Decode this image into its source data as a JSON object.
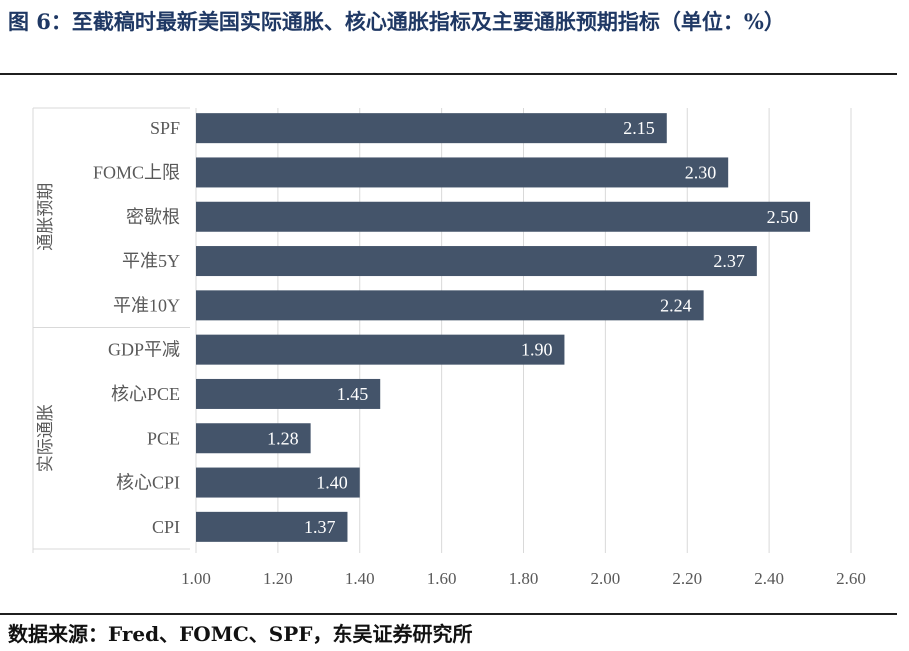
{
  "title": "图 6：至截稿时最新美国实际通胀、核心通胀指标及主要通胀预期指标（单位：%）",
  "source": "数据来源：Fred、FOMC、SPF，东吴证券研究所",
  "colors": {
    "bar": "#44546a",
    "grid": "#d9d9d9",
    "label": "#ffffff",
    "axis_text": "#595959"
  },
  "chart_data": {
    "type": "bar",
    "orientation": "horizontal",
    "categories": [
      "SPF",
      "FOMC上限",
      "密歇根",
      "平准5Y",
      "平准10Y",
      "GDP平减",
      "核心PCE",
      "PCE",
      "核心CPI",
      "CPI"
    ],
    "values": [
      2.15,
      2.3,
      2.5,
      2.37,
      2.24,
      1.9,
      1.45,
      1.28,
      1.4,
      1.37
    ],
    "value_labels": [
      "2.15",
      "2.30",
      "2.50",
      "2.37",
      "2.24",
      "1.90",
      "1.45",
      "1.28",
      "1.40",
      "1.37"
    ],
    "groups": [
      {
        "label": "通胀预期",
        "members": [
          "SPF",
          "FOMC上限",
          "密歇根",
          "平准5Y",
          "平准10Y"
        ]
      },
      {
        "label": "实际通胀",
        "members": [
          "GDP平减",
          "核心PCE",
          "PCE",
          "核心CPI",
          "CPI"
        ]
      }
    ],
    "xlim": [
      1.0,
      2.6
    ],
    "xticks": [
      1.0,
      1.2,
      1.4,
      1.6,
      1.8,
      2.0,
      2.2,
      2.4,
      2.6
    ],
    "xtick_labels": [
      "1.00",
      "1.20",
      "1.40",
      "1.60",
      "1.80",
      "2.00",
      "2.20",
      "2.40",
      "2.60"
    ],
    "grid": "vertical",
    "xlabel": "",
    "ylabel": ""
  }
}
